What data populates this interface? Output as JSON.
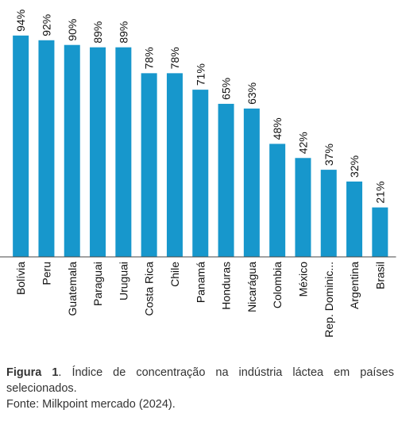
{
  "chart_data": {
    "type": "bar",
    "categories": [
      "Bolívia",
      "Peru",
      "Guatemala",
      "Paraguai",
      "Uruguai",
      "Costa Rica",
      "Chile",
      "Panamá",
      "Honduras",
      "Nicarágua",
      "Colombia",
      "México",
      "Rep. Dominic...",
      "Argentina",
      "Brasil"
    ],
    "values": [
      94,
      92,
      90,
      89,
      89,
      78,
      78,
      71,
      65,
      63,
      48,
      42,
      37,
      32,
      21
    ],
    "value_labels": [
      "94%",
      "92%",
      "90%",
      "89%",
      "89%",
      "78%",
      "78%",
      "71%",
      "65%",
      "63%",
      "48%",
      "42%",
      "37%",
      "32%",
      "21%"
    ],
    "unit": "%",
    "ylim": [
      0,
      100
    ],
    "grid": false,
    "legend": "none",
    "bar_color": "#1797CC"
  },
  "caption": {
    "label": "Figura 1",
    "text": ". Índice de concentração na indústria láctea em países selecionados.",
    "source": "Fonte: Milkpoint mercado (2024)."
  }
}
